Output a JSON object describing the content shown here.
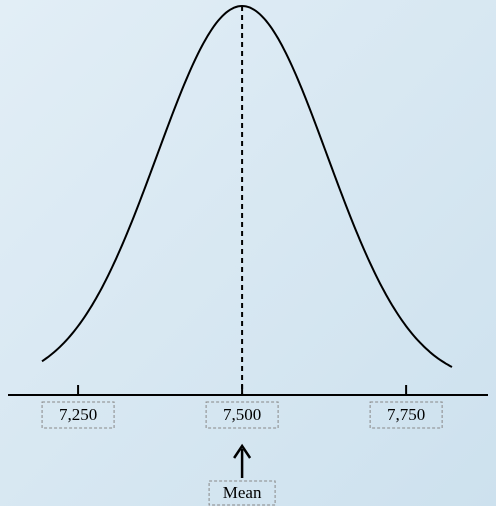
{
  "chart_data": {
    "type": "normal-curve",
    "xlim": [
      7131,
      7887
    ],
    "xticks": [
      {
        "value": 7250,
        "label": "7,250"
      },
      {
        "value": 7500,
        "label": "7,500"
      },
      {
        "value": 7750,
        "label": "7,750"
      }
    ],
    "annotation": "Mean"
  }
}
